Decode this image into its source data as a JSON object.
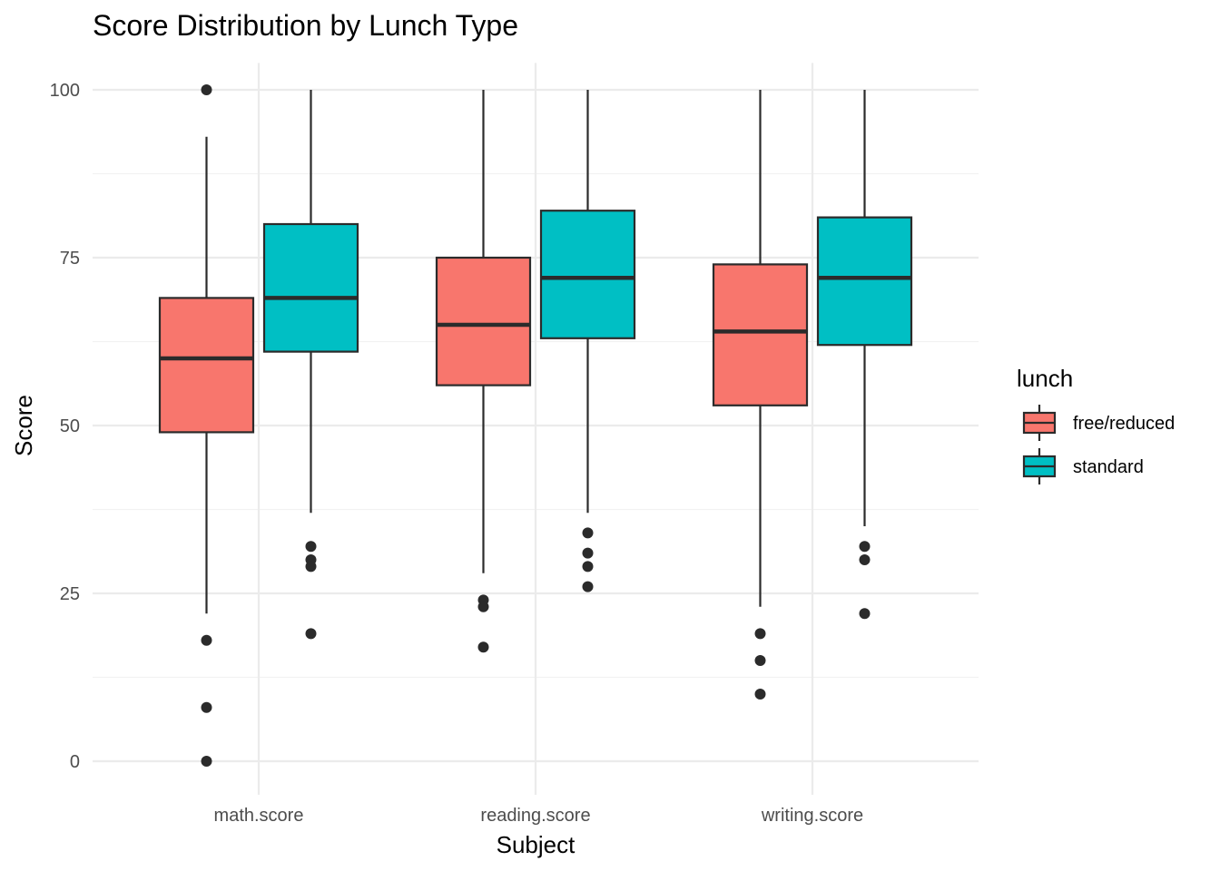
{
  "chart_data": {
    "type": "boxplot",
    "title": "Score Distribution by Lunch Type",
    "xlabel": "Subject",
    "ylabel": "Score",
    "ylim": [
      -5,
      104
    ],
    "yticks": [
      0,
      25,
      50,
      75,
      100
    ],
    "ytick_labels": [
      "0",
      "25",
      "50",
      "75",
      "100"
    ],
    "categories": [
      "math.score",
      "reading.score",
      "writing.score"
    ],
    "grid": true,
    "legend": {
      "title": "lunch",
      "position": "right"
    },
    "series": [
      {
        "name": "free/reduced",
        "color": "#F8766D",
        "boxes": [
          {
            "whisker_low": 22,
            "q1": 49,
            "median": 60,
            "q3": 69,
            "whisker_high": 93,
            "outliers": [
              100,
              18,
              8,
              0
            ]
          },
          {
            "whisker_low": 28,
            "q1": 56,
            "median": 65,
            "q3": 75,
            "whisker_high": 100,
            "outliers": [
              24,
              23,
              17
            ]
          },
          {
            "whisker_low": 23,
            "q1": 53,
            "median": 64,
            "q3": 74,
            "whisker_high": 100,
            "outliers": [
              19,
              15,
              10
            ]
          }
        ]
      },
      {
        "name": "standard",
        "color": "#00BFC4",
        "boxes": [
          {
            "whisker_low": 37,
            "q1": 61,
            "median": 69,
            "q3": 80,
            "whisker_high": 100,
            "outliers": [
              32,
              30,
              29,
              19
            ]
          },
          {
            "whisker_low": 37,
            "q1": 63,
            "median": 72,
            "q3": 82,
            "whisker_high": 100,
            "outliers": [
              34,
              31,
              29,
              26
            ]
          },
          {
            "whisker_low": 35,
            "q1": 62,
            "median": 72,
            "q3": 81,
            "whisker_high": 100,
            "outliers": [
              32,
              30,
              22
            ]
          }
        ]
      }
    ]
  }
}
